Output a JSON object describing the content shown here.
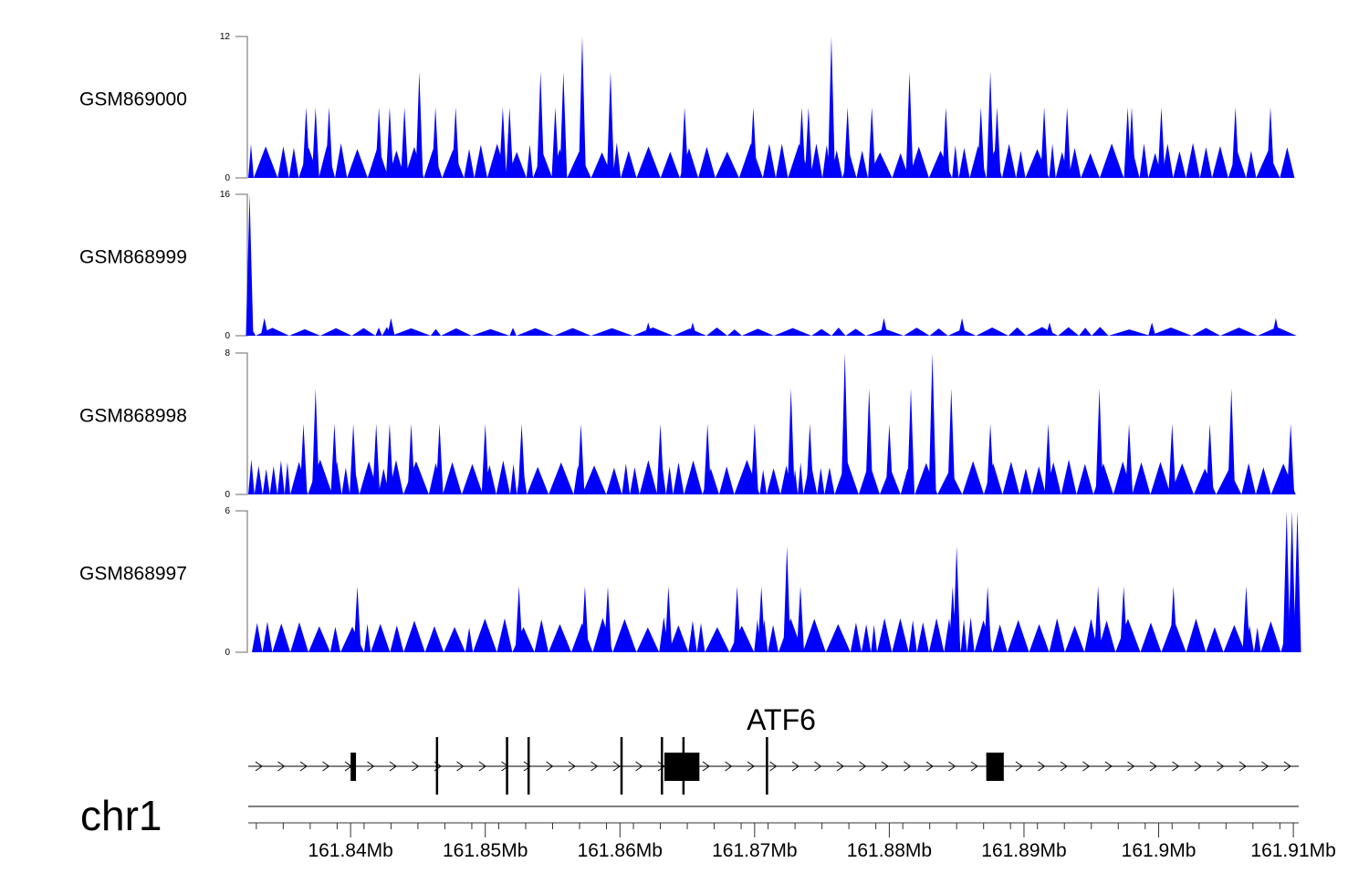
{
  "chart_data": {
    "type": "area",
    "title": "",
    "chromosome": "chr1",
    "xlim_mb": [
      161.8324,
      161.9104
    ],
    "x_ticks": [
      "161.84Mb",
      "161.85Mb",
      "161.86Mb",
      "161.87Mb",
      "161.88Mb",
      "161.89Mb",
      "161.9Mb",
      "161.91Mb"
    ],
    "x_tick_values_mb": [
      161.84,
      161.85,
      161.86,
      161.87,
      161.88,
      161.89,
      161.9,
      161.91
    ],
    "tracks": [
      {
        "name": "GSM869000",
        "ylim": [
          0,
          12
        ],
        "ytick_labels": [
          "0",
          "12"
        ],
        "base_level": 3,
        "color": "#0000ff",
        "peaks": [
          [
            161.8572,
            12
          ],
          [
            161.8757,
            12
          ],
          [
            161.8451,
            9
          ],
          [
            161.8541,
            9
          ],
          [
            161.8558,
            9
          ],
          [
            161.8593,
            9
          ],
          [
            161.8815,
            9
          ],
          [
            161.8875,
            9
          ],
          [
            161.8367,
            6
          ],
          [
            161.8374,
            6
          ],
          [
            161.8384,
            6
          ],
          [
            161.8421,
            6
          ],
          [
            161.8429,
            6
          ],
          [
            161.844,
            6
          ],
          [
            161.8463,
            6
          ],
          [
            161.8478,
            6
          ],
          [
            161.8513,
            6
          ],
          [
            161.8518,
            6
          ],
          [
            161.8552,
            6
          ],
          [
            161.8648,
            6
          ],
          [
            161.8699,
            6
          ],
          [
            161.8735,
            6
          ],
          [
            161.874,
            6
          ],
          [
            161.8769,
            6
          ],
          [
            161.8787,
            6
          ],
          [
            161.8815,
            6
          ],
          [
            161.8842,
            6
          ],
          [
            161.8868,
            6
          ],
          [
            161.888,
            6
          ],
          [
            161.8915,
            6
          ],
          [
            161.8932,
            6
          ],
          [
            161.8977,
            6
          ],
          [
            161.898,
            6
          ],
          [
            161.9002,
            6
          ],
          [
            161.9057,
            6
          ],
          [
            161.9083,
            6
          ]
        ]
      },
      {
        "name": "GSM868999",
        "ylim": [
          0,
          16
        ],
        "ytick_labels": [
          "0",
          "16"
        ],
        "base_level": 1,
        "color": "#0000ff",
        "peaks": [
          [
            161.8325,
            16
          ],
          [
            161.8336,
            2
          ],
          [
            161.843,
            2
          ],
          [
            161.8621,
            1.5
          ],
          [
            161.8654,
            1.5
          ],
          [
            161.8796,
            2
          ],
          [
            161.8854,
            2
          ],
          [
            161.8919,
            1.5
          ],
          [
            161.8995,
            1.5
          ],
          [
            161.9087,
            2
          ]
        ]
      },
      {
        "name": "GSM868998",
        "ylim": [
          0,
          8
        ],
        "ytick_labels": [
          "0",
          "8"
        ],
        "base_level": 2,
        "color": "#0000ff",
        "peaks": [
          [
            161.8767,
            8
          ],
          [
            161.8832,
            8
          ],
          [
            161.8374,
            6
          ],
          [
            161.8727,
            6
          ],
          [
            161.8785,
            6
          ],
          [
            161.8816,
            6
          ],
          [
            161.8846,
            6
          ],
          [
            161.8956,
            6
          ],
          [
            161.9054,
            6
          ],
          [
            161.8365,
            4
          ],
          [
            161.8388,
            4
          ],
          [
            161.8402,
            4
          ],
          [
            161.8419,
            4
          ],
          [
            161.8429,
            4
          ],
          [
            161.8445,
            4
          ],
          [
            161.8466,
            4
          ],
          [
            161.85,
            4
          ],
          [
            161.8527,
            4
          ],
          [
            161.8571,
            4
          ],
          [
            161.863,
            4
          ],
          [
            161.8665,
            4
          ],
          [
            161.87,
            4
          ],
          [
            161.8741,
            4
          ],
          [
            161.88,
            4
          ],
          [
            161.8875,
            4
          ],
          [
            161.8918,
            4
          ],
          [
            161.8978,
            4
          ],
          [
            161.901,
            4
          ],
          [
            161.9038,
            4
          ],
          [
            161.9098,
            4
          ]
        ]
      },
      {
        "name": "GSM868997",
        "ylim": [
          0,
          6
        ],
        "ytick_labels": [
          "0",
          "6"
        ],
        "base_level": 1.5,
        "color": "#0000ff",
        "peaks": [
          [
            161.9095,
            6
          ],
          [
            161.9099,
            6
          ],
          [
            161.9103,
            6
          ],
          [
            161.8724,
            4.5
          ],
          [
            161.885,
            4.5
          ],
          [
            161.8405,
            2.8
          ],
          [
            161.8525,
            2.8
          ],
          [
            161.8574,
            2.8
          ],
          [
            161.8591,
            2.8
          ],
          [
            161.8636,
            2.8
          ],
          [
            161.8687,
            2.8
          ],
          [
            161.8705,
            2.8
          ],
          [
            161.8734,
            2.8
          ],
          [
            161.8847,
            2.8
          ],
          [
            161.8873,
            2.8
          ],
          [
            161.8955,
            2.8
          ],
          [
            161.8974,
            2.8
          ],
          [
            161.9011,
            2.8
          ],
          [
            161.9065,
            2.8
          ]
        ]
      }
    ],
    "gene": {
      "label": "ATF6",
      "strand": "+",
      "start_mb": 161.8324,
      "end_mb": 161.9104,
      "exons_mb": [
        [
          161.84,
          161.8404
        ],
        [
          161.8464,
          161.8466
        ],
        [
          161.8516,
          161.8518
        ],
        [
          161.8532,
          161.8534
        ],
        [
          161.8601,
          161.8603
        ],
        [
          161.8631,
          161.8633
        ],
        [
          161.8633,
          161.8659
        ],
        [
          161.8647,
          161.8649
        ],
        [
          161.8709,
          161.8711
        ],
        [
          161.8872,
          161.8885
        ]
      ],
      "thick_exons": [
        0,
        6,
        9
      ]
    }
  }
}
